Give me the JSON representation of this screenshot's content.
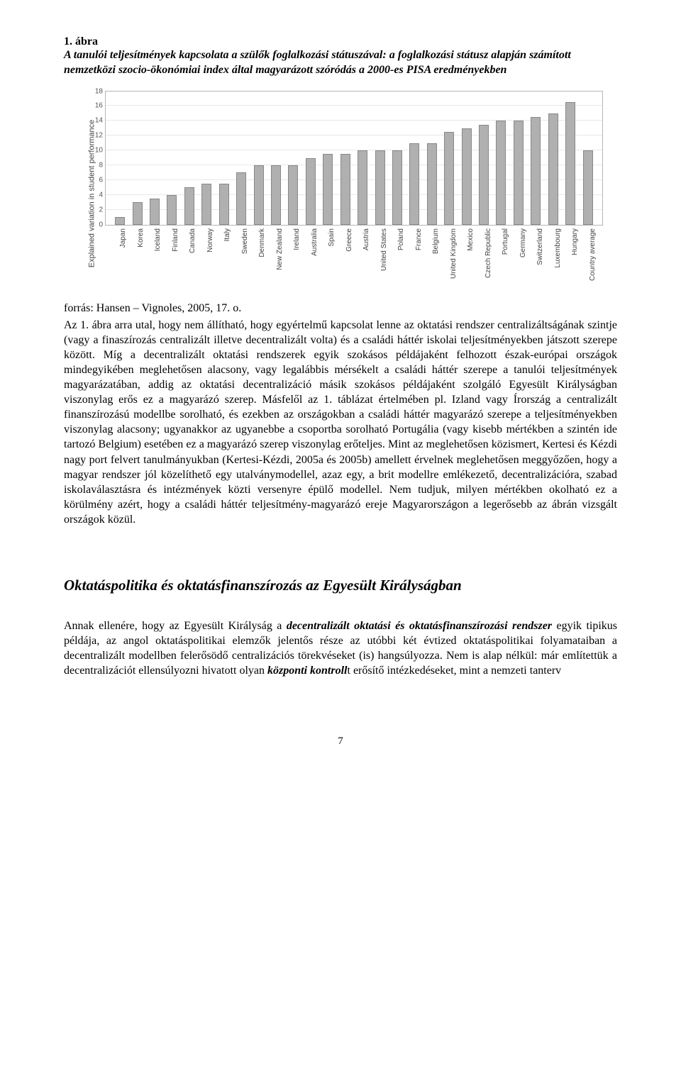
{
  "figure": {
    "label": "1. ábra",
    "caption": "A tanulói teljesítmények kapcsolata a szülők foglalkozási státuszával: a foglalkozási státusz alapján számított nemzetközi szocio-ökonómiai index által magyarázott szóródás a 2000-es PISA eredményekben"
  },
  "chart": {
    "type": "bar",
    "ylabel": "Explained variation in student performance",
    "ylim": [
      0,
      18
    ],
    "ytick_step": 2,
    "yticks": [
      0,
      2,
      4,
      6,
      8,
      10,
      12,
      14,
      16,
      18
    ],
    "bar_color": "#b0b0b0",
    "bar_border": "#888888",
    "grid_color": "#e8e8e8",
    "axis_color": "#b5b5b5",
    "background_color": "#ffffff",
    "label_fontsize": 10,
    "categories": [
      "Japan",
      "Korea",
      "Iceland",
      "Finland",
      "Canada",
      "Norway",
      "Italy",
      "Sweden",
      "Denmark",
      "New Zealand",
      "Ireland",
      "Australia",
      "Spain",
      "Greece",
      "Austria",
      "United States",
      "Poland",
      "France",
      "Belgium",
      "United Kingdom",
      "Mexico",
      "Czech Republic",
      "Portugal",
      "Germany",
      "Switzerland",
      "Luxembourg",
      "Hungary",
      "Country average"
    ],
    "values": [
      1.0,
      3.0,
      3.5,
      4.0,
      5.0,
      5.5,
      5.5,
      7.0,
      8.0,
      8.0,
      8.0,
      9.0,
      9.5,
      9.5,
      10.0,
      10.0,
      10.0,
      11.0,
      11.0,
      12.5,
      13.0,
      13.5,
      14.0,
      14.0,
      14.5,
      15.0,
      16.5,
      10.0
    ]
  },
  "source": "forrás: Hansen – Vignoles, 2005, 17. o.",
  "para1": "Az 1. ábra arra utal, hogy nem állítható, hogy egyértelmű kapcsolat lenne az oktatási rendszer centralizáltságának szintje (vagy a finaszírozás centralizált illetve decentralizált volta) és a családi háttér iskolai teljesítményekben játszott szerepe között. Míg a decentralizált oktatási rendszerek egyik szokásos példájaként felhozott észak-európai országok mindegyikében meglehetősen alacsony, vagy legalábbis mérsékelt a családi háttér szerepe a tanulói teljesítmények magyarázatában, addig az oktatási decentralizáció másik szokásos példájaként szolgáló Egyesült Királyságban viszonylag erős ez a magyarázó szerep. Másfelől az 1. táblázat értelmében pl. Izland vagy Írország a centralizált finanszírozású modellbe sorolható, és ezekben az országokban  a családi háttér magyarázó szerepe a teljesítményekben viszonylag alacsony; ugyanakkor az ugyanebbe a csoportba sorolható Portugália (vagy kisebb mértékben a szintén ide tartozó Belgium)  esetében ez a magyarázó szerep viszonylag erőteljes.  Mint az meglehetősen közismert, Kertesi és Kézdi nagy port felvert tanulmányukban (Kertesi-Kézdi, 2005a és 2005b) amellett érvelnek meglehetősen meggyőzően, hogy a magyar rendszer jól közelíthető egy utalványmodellel, azaz egy, a brit modellre emlékezető, decentralizációra, szabad iskolaválasztásra és intézmények közti versenyre épülő modellel. Nem tudjuk, milyen mértékben okolható ez a körülmény azért, hogy a családi háttér teljesítmény-magyarázó ereje Magyarországon a legerősebb az ábrán vizsgált országok közül.",
  "section_heading": "Oktatáspolitika és oktatásfinanszírozás az Egyesült Királyságban",
  "para2_pre": "Annak ellenére, hogy az Egyesült Királyság a ",
  "para2_em1": "decentralizált oktatási és oktatásfinanszírozási rendszer",
  "para2_mid": " egyik tipikus példája, az angol oktatáspolitikai elemzők jelentős része az utóbbi két évtized oktatáspolitikai folyamataiban a decentralizált modellben felerősödő centralizációs törekvéseket (is) hangsúlyozza. Nem is alap nélkül: már említettük a decentralizációt ellensúlyozni hivatott olyan ",
  "para2_em2": "központi kontroll",
  "para2_post": "t erősítő intézkedéseket, mint a nemzeti tanterv",
  "page_number": "7"
}
